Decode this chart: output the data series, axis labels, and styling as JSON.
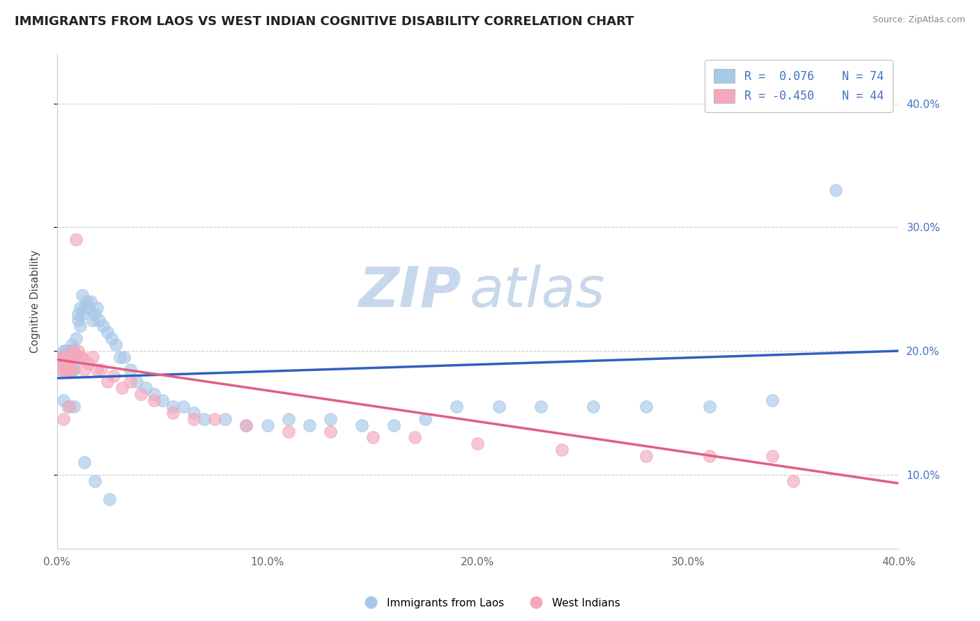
{
  "title": "IMMIGRANTS FROM LAOS VS WEST INDIAN COGNITIVE DISABILITY CORRELATION CHART",
  "source": "Source: ZipAtlas.com",
  "ylabel": "Cognitive Disability",
  "xlim": [
    0.0,
    0.4
  ],
  "ylim": [
    0.04,
    0.44
  ],
  "yticks": [
    0.1,
    0.2,
    0.3,
    0.4
  ],
  "xticks": [
    0.0,
    0.1,
    0.2,
    0.3,
    0.4
  ],
  "xtick_labels": [
    "0.0%",
    "10.0%",
    "20.0%",
    "30.0%",
    "40.0%"
  ],
  "ytick_labels": [
    "10.0%",
    "20.0%",
    "30.0%",
    "40.0%"
  ],
  "color_blue": "#a8c8e8",
  "color_pink": "#f4a8bc",
  "color_blue_line": "#3060c0",
  "color_pink_line": "#e06080",
  "blue_scatter_x": [
    0.001,
    0.002,
    0.002,
    0.003,
    0.003,
    0.004,
    0.004,
    0.004,
    0.005,
    0.005,
    0.005,
    0.006,
    0.006,
    0.006,
    0.007,
    0.007,
    0.007,
    0.008,
    0.008,
    0.008,
    0.009,
    0.009,
    0.01,
    0.01,
    0.011,
    0.011,
    0.012,
    0.012,
    0.013,
    0.014,
    0.015,
    0.016,
    0.017,
    0.018,
    0.019,
    0.02,
    0.022,
    0.024,
    0.026,
    0.028,
    0.03,
    0.032,
    0.035,
    0.038,
    0.042,
    0.046,
    0.05,
    0.055,
    0.06,
    0.065,
    0.07,
    0.08,
    0.09,
    0.1,
    0.11,
    0.12,
    0.13,
    0.145,
    0.16,
    0.175,
    0.19,
    0.21,
    0.23,
    0.255,
    0.28,
    0.31,
    0.34,
    0.37,
    0.003,
    0.005,
    0.008,
    0.013,
    0.018,
    0.025
  ],
  "blue_scatter_y": [
    0.19,
    0.185,
    0.195,
    0.2,
    0.195,
    0.19,
    0.195,
    0.2,
    0.185,
    0.19,
    0.2,
    0.185,
    0.195,
    0.2,
    0.185,
    0.195,
    0.205,
    0.185,
    0.19,
    0.2,
    0.195,
    0.21,
    0.225,
    0.23,
    0.22,
    0.235,
    0.23,
    0.245,
    0.235,
    0.24,
    0.235,
    0.24,
    0.225,
    0.23,
    0.235,
    0.225,
    0.22,
    0.215,
    0.21,
    0.205,
    0.195,
    0.195,
    0.185,
    0.175,
    0.17,
    0.165,
    0.16,
    0.155,
    0.155,
    0.15,
    0.145,
    0.145,
    0.14,
    0.14,
    0.145,
    0.14,
    0.145,
    0.14,
    0.14,
    0.145,
    0.155,
    0.155,
    0.155,
    0.155,
    0.155,
    0.155,
    0.16,
    0.33,
    0.16,
    0.155,
    0.155,
    0.11,
    0.095,
    0.08
  ],
  "pink_scatter_x": [
    0.001,
    0.002,
    0.003,
    0.003,
    0.004,
    0.004,
    0.005,
    0.005,
    0.006,
    0.006,
    0.007,
    0.007,
    0.008,
    0.009,
    0.01,
    0.011,
    0.012,
    0.013,
    0.015,
    0.017,
    0.019,
    0.021,
    0.024,
    0.027,
    0.031,
    0.035,
    0.04,
    0.046,
    0.055,
    0.065,
    0.075,
    0.09,
    0.11,
    0.13,
    0.15,
    0.17,
    0.2,
    0.24,
    0.28,
    0.31,
    0.34,
    0.003,
    0.006,
    0.35
  ],
  "pink_scatter_y": [
    0.195,
    0.185,
    0.19,
    0.195,
    0.185,
    0.195,
    0.185,
    0.19,
    0.185,
    0.195,
    0.185,
    0.2,
    0.195,
    0.29,
    0.2,
    0.195,
    0.195,
    0.185,
    0.19,
    0.195,
    0.185,
    0.185,
    0.175,
    0.18,
    0.17,
    0.175,
    0.165,
    0.16,
    0.15,
    0.145,
    0.145,
    0.14,
    0.135,
    0.135,
    0.13,
    0.13,
    0.125,
    0.12,
    0.115,
    0.115,
    0.115,
    0.145,
    0.155,
    0.095
  ],
  "blue_line_x": [
    0.0,
    0.4
  ],
  "blue_line_y": [
    0.178,
    0.2
  ],
  "pink_line_x": [
    0.0,
    0.4
  ],
  "pink_line_y": [
    0.193,
    0.093
  ]
}
